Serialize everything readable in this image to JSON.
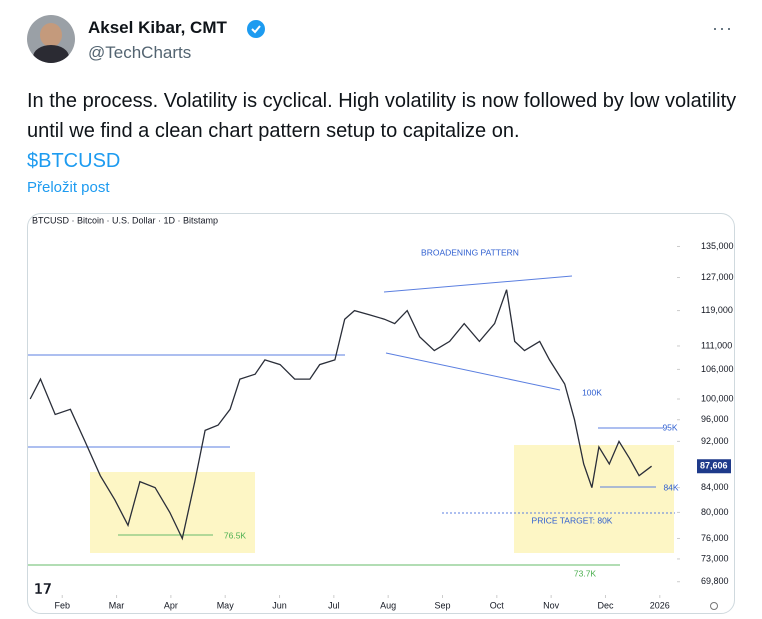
{
  "tweet": {
    "author": "Aksel Kibar, CMT",
    "handle": "@TechCharts",
    "text": "In the process. Volatility is cyclical. High volatility is now followed by low volatility until we find a clean chart pattern setup to capitalize on.",
    "cashtag": "$BTCUSD",
    "translate": "Přeložit post"
  },
  "chart_data": {
    "type": "line",
    "title": "BTCUSD · Bitcoin · U.S. Dollar · 1D · Bitstamp",
    "x": [
      1.41,
      1.6,
      1.87,
      2.15,
      2.42,
      2.7,
      2.97,
      3.21,
      3.43,
      3.71,
      3.98,
      4.21,
      4.44,
      4.63,
      4.87,
      5.09,
      5.27,
      5.55,
      5.73,
      6.01,
      6.28,
      6.56,
      6.74,
      7.02,
      7.2,
      7.38,
      7.66,
      7.93,
      8.12,
      8.35,
      8.58,
      8.85,
      9.13,
      9.4,
      9.68,
      9.96,
      10.18,
      10.33,
      10.51,
      10.79,
      10.97,
      11.25,
      11.43,
      11.6,
      11.75,
      11.88,
      12.07,
      12.25,
      12.44,
      12.62,
      12.85
    ],
    "values": [
      100000,
      104000,
      97000,
      98000,
      92000,
      86000,
      82000,
      78000,
      85000,
      84000,
      80000,
      76000,
      85000,
      94000,
      95000,
      98000,
      104000,
      105000,
      108000,
      107000,
      104000,
      104000,
      107000,
      108000,
      117000,
      119000,
      118000,
      117000,
      116000,
      119000,
      113000,
      110000,
      112000,
      116000,
      112000,
      116000,
      124000,
      112000,
      110000,
      112000,
      108000,
      103000,
      96000,
      88000,
      84000,
      91000,
      88000,
      92000,
      89000,
      86000,
      87606
    ],
    "color": "#2a2e39",
    "xlim": [
      1.37,
      13.28
    ],
    "xticks": [
      {
        "value": 2,
        "label": "Feb"
      },
      {
        "value": 3,
        "label": "Mar"
      },
      {
        "value": 4,
        "label": "Apr"
      },
      {
        "value": 5,
        "label": "May"
      },
      {
        "value": 6,
        "label": "Jun"
      },
      {
        "value": 7,
        "label": "Jul"
      },
      {
        "value": 8,
        "label": "Aug"
      },
      {
        "value": 9,
        "label": "Sep"
      },
      {
        "value": 10,
        "label": "Oct"
      },
      {
        "value": 11,
        "label": "Nov"
      },
      {
        "value": 12,
        "label": "Dec"
      },
      {
        "value": 13,
        "label": "2026"
      }
    ],
    "ylim": [
      68000,
      140000
    ],
    "log_scale": true,
    "yticks": [
      {
        "value": 135000,
        "label": "135,000"
      },
      {
        "value": 127000,
        "label": "127,000"
      },
      {
        "value": 119000,
        "label": "119,000"
      },
      {
        "value": 111000,
        "label": "111,000"
      },
      {
        "value": 106000,
        "label": "106,000"
      },
      {
        "value": 100000,
        "label": "100,000"
      },
      {
        "value": 96000,
        "label": "96,000"
      },
      {
        "value": 92000,
        "label": "92,000"
      },
      {
        "value": 84000,
        "label": "84,000"
      },
      {
        "value": 80000,
        "label": "80,000"
      },
      {
        "value": 76000,
        "label": "76,000"
      },
      {
        "value": 73000,
        "label": "73,000"
      },
      {
        "value": 69800,
        "label": "69,800"
      }
    ],
    "last_price": {
      "value": 87606,
      "label": "87,606"
    },
    "annotations": [
      "BROADENING PATTERN",
      "100K",
      "95K",
      "84K",
      "PRICE TARGET: 80K",
      "76.5K",
      "73.7K"
    ]
  }
}
